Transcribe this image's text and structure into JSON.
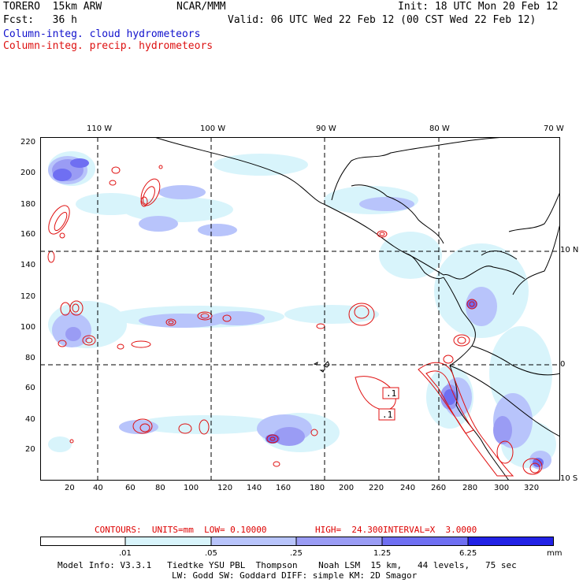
{
  "header": {
    "model": "TORERO  15km ARW",
    "org": "NCAR/MMM",
    "init": "Init: 18 UTC Mon 20 Feb 12",
    "fcst": "Fcst:   36 h",
    "valid": "Valid: 06 UTC Wed 22 Feb 12 (00 CST Wed 22 Feb 12)"
  },
  "fields": {
    "cloud": "Column-integ. cloud hydrometeors",
    "precip": "Column-integ. precip. hydrometeors"
  },
  "colors": {
    "cloud_text": "#1010cc",
    "precip_text": "#dd1010",
    "contour": "#e01010",
    "coast": "#000000",
    "shade": [
      "#ffffff",
      "#d8f4fb",
      "#b8c4fb",
      "#9a9cf4",
      "#6f6ff2",
      "#4848ec",
      "#2222e6"
    ]
  },
  "map": {
    "lon_labels": [
      "110 W",
      "100 W",
      "90 W",
      "80 W",
      "70 W"
    ],
    "lat_labels": [
      "10 N",
      "0",
      "10 S"
    ],
    "y_ticks": [
      "220",
      "200",
      "180",
      "160",
      "140",
      "120",
      "100",
      "80",
      "60",
      "40",
      "20"
    ],
    "x_ticks": [
      "20",
      "40",
      "60",
      "80",
      "100",
      "120",
      "140",
      "160",
      "180",
      "200",
      "220",
      "240",
      "260",
      "280",
      "300",
      "320"
    ],
    "box_labels": [
      ".1",
      ".1"
    ]
  },
  "contours_line": {
    "label": "CONTOURS:  UNITS=mm  LOW= 0.10000",
    "high": "HIGH=  24.300",
    "interval": "INTERVAL=X  3.0000"
  },
  "legend": {
    "labels": [
      ".01",
      ".05",
      ".25",
      "1.25",
      "6.25"
    ],
    "unit": "mm"
  },
  "model_info": {
    "line1": "Model Info: V3.3.1   Tiedtke YSU PBL  Thompson    Noah LSM  15 km,   44 levels,   75 sec",
    "line2": "LW: Godd SW: Goddard DIFF: simple KM: 2D Smagor"
  }
}
